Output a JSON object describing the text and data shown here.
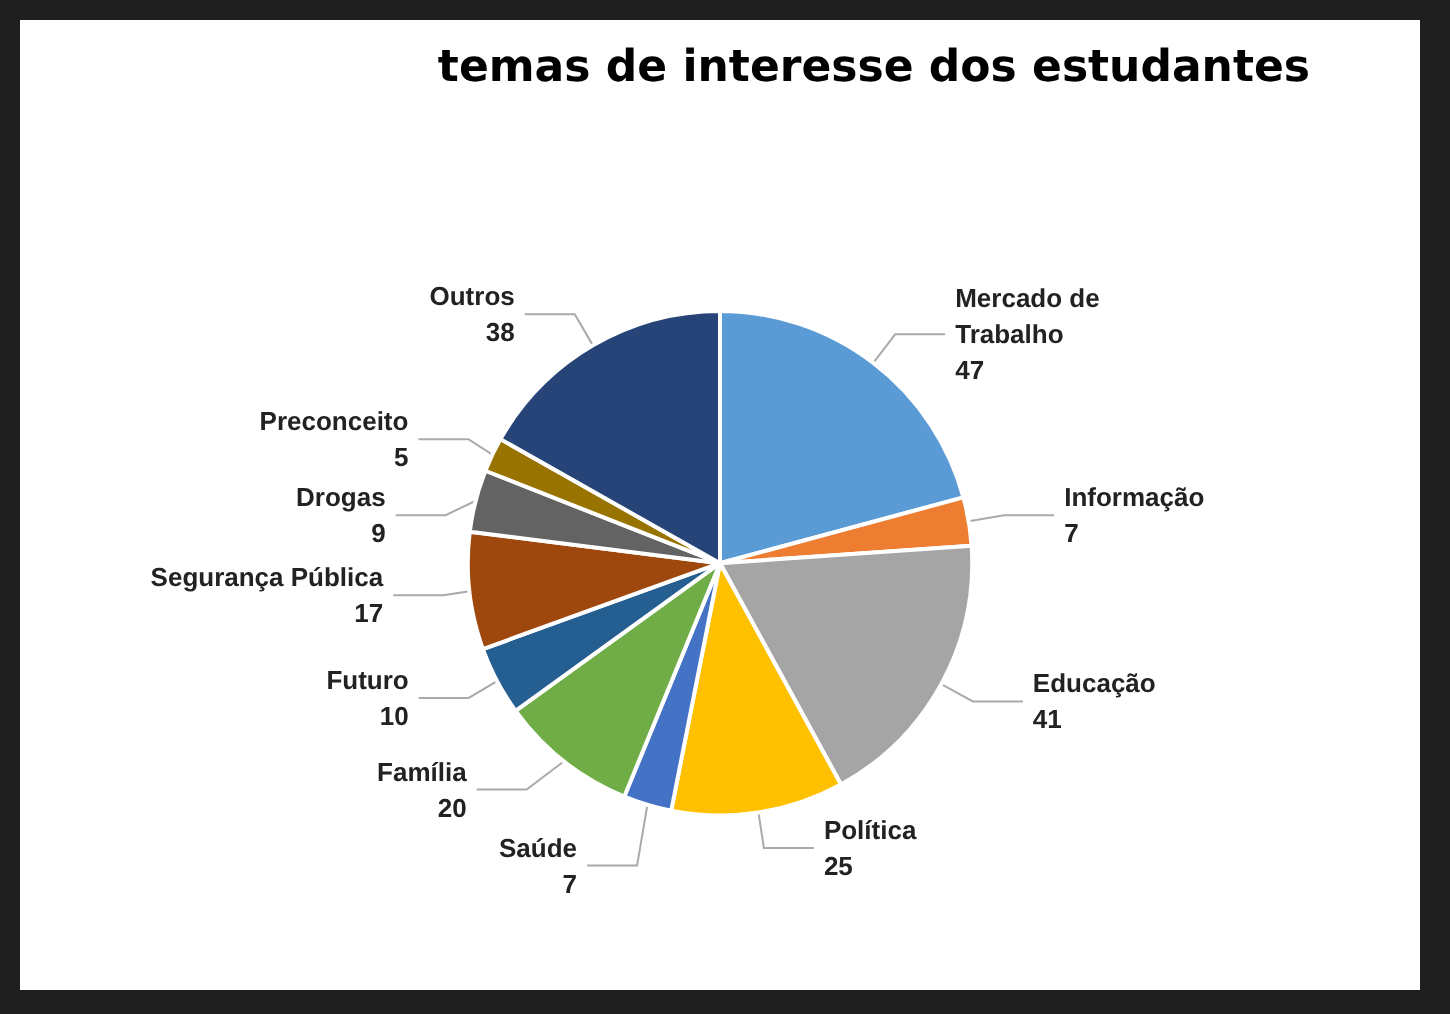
{
  "chart_data": {
    "type": "pie",
    "title": "temas de interesse dos estudantes",
    "categories": [
      "Mercado de Trabalho",
      "Informação",
      "Educação",
      "Política",
      "Saúde",
      "Família",
      "Futuro",
      "Segurança Pública",
      "Drogas",
      "Preconceito",
      "Outros"
    ],
    "values": [
      47,
      7,
      41,
      25,
      7,
      20,
      10,
      17,
      9,
      5,
      38
    ],
    "colors": [
      "#5b9bd5",
      "#ed7d31",
      "#a5a5a5",
      "#ffc000",
      "#4472c4",
      "#70ad47",
      "#255e91",
      "#9e480e",
      "#636363",
      "#997300",
      "#264478"
    ],
    "data_labels": true,
    "legend": false
  }
}
